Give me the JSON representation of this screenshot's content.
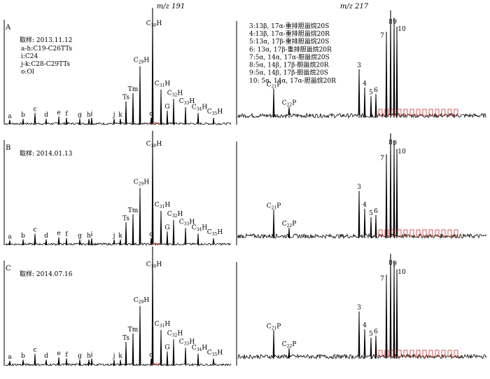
{
  "headers": {
    "left": "m/z 191",
    "right": "m/z 217"
  },
  "panels": [
    {
      "letter": "A",
      "sample": "取样: 2013.11.12"
    },
    {
      "letter": "B",
      "sample": "取样: 2014.01.13"
    },
    {
      "letter": "C",
      "sample": "取样: 2014.07.16"
    }
  ],
  "left_legend": [
    "a-h:C19-C26TTs",
    "i:C24",
    "j-k:C28-C29TTs",
    "o:Ol"
  ],
  "right_legend": [
    "3:13β, 17α-重排胆甾烷20S",
    "4:13β, 17α-重排胆甾烷20R",
    "5:13α, 17β-重排胆甾烷20S",
    "6: 13α, 17β-重排胆甾烷20R",
    "7:5α, 14α, 17α-胆甾烷20S",
    "8:5α, 14β, 17β-胆甾烷20R",
    "9:5α, 14β, 17β-胆甾烷20S",
    "10: 5α, 14α, 17α-胆甾烷20R"
  ],
  "colors": {
    "trace": "#000000",
    "fill": "#cc3333"
  },
  "chart_data": [
    {
      "type": "line",
      "title": "m/z 191",
      "xlabel": "",
      "ylabel": "",
      "series": [
        {
          "name": "",
          "values": []
        }
      ],
      "peaks": [
        {
          "label": "a",
          "sub": "",
          "height": 0.04
        },
        {
          "label": "b",
          "sub": "",
          "height": 0.05
        },
        {
          "label": "c",
          "sub": "",
          "height": 0.1
        },
        {
          "label": "d",
          "sub": "",
          "height": 0.05
        },
        {
          "label": "e",
          "sub": "",
          "height": 0.07
        },
        {
          "label": "f",
          "sub": "",
          "height": 0.06
        },
        {
          "label": "g",
          "sub": "",
          "height": 0.05
        },
        {
          "label": "h",
          "sub": "",
          "height": 0.05
        },
        {
          "label": "i",
          "sub": "",
          "height": 0.06
        },
        {
          "label": "j",
          "sub": "",
          "height": 0.05
        },
        {
          "label": "k",
          "sub": "",
          "height": 0.05
        },
        {
          "label": "Ts",
          "sub": "",
          "height": 0.2
        },
        {
          "label": "Tm",
          "sub": "",
          "height": 0.27
        },
        {
          "label": "o",
          "sub": "",
          "height": 0.06
        },
        {
          "label": "C",
          "sub": "29",
          "post": "H",
          "height": 0.5
        },
        {
          "label": "C",
          "sub": "30",
          "post": "H",
          "height": 1.0
        },
        {
          "label": "G",
          "sub": "",
          "height": 0.12
        },
        {
          "label": "C",
          "sub": "31",
          "post": "H",
          "height": 0.3
        },
        {
          "label": "C",
          "sub": "32",
          "post": "H",
          "height": 0.22
        },
        {
          "label": "C",
          "sub": "33",
          "post": "H",
          "height": 0.15
        },
        {
          "label": "C",
          "sub": "34",
          "post": "H",
          "height": 0.1
        },
        {
          "label": "C",
          "sub": "35",
          "post": "H",
          "height": 0.06
        }
      ]
    },
    {
      "type": "line",
      "title": "m/z 217",
      "xlabel": "",
      "ylabel": "",
      "series": [
        {
          "name": "",
          "values": []
        }
      ],
      "peaks": [
        {
          "label": "C",
          "sub": "21",
          "post": "P",
          "height": 0.27
        },
        {
          "label": "C",
          "sub": "22",
          "post": "P",
          "height": 0.1
        },
        {
          "label": "3",
          "sub": "",
          "height": 0.45
        },
        {
          "label": "4",
          "sub": "",
          "height": 0.28
        },
        {
          "label": "5",
          "sub": "",
          "height": 0.2
        },
        {
          "label": "6",
          "sub": "",
          "height": 0.22
        },
        {
          "label": "7",
          "sub": "",
          "height": 0.8
        },
        {
          "label": "8",
          "sub": "",
          "height": 1.0
        },
        {
          "label": "9",
          "sub": "",
          "height": 0.93
        },
        {
          "label": "10",
          "sub": "",
          "height": 0.85
        }
      ]
    }
  ]
}
